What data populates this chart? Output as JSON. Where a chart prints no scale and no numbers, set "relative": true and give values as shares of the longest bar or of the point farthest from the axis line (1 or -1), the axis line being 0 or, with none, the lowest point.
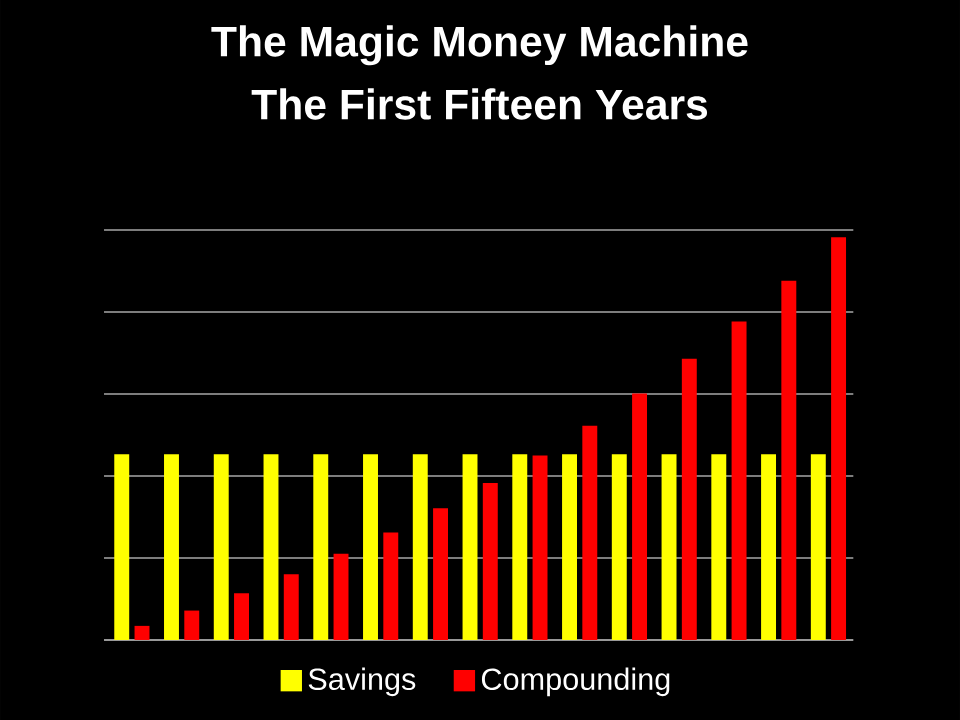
{
  "chart_data": {
    "type": "bar",
    "title": "The Magic Money Machine",
    "subtitle": "The First Fifteen Years",
    "categories": [
      null,
      null,
      null,
      null,
      null,
      null,
      null,
      null,
      null,
      null,
      null,
      null,
      null,
      null,
      null
    ],
    "relative": true,
    "grid": "y",
    "legend": "bottom",
    "series": [
      {
        "name": "Savings",
        "color": "#ffff00",
        "values": [
          0.461,
          0.461,
          0.461,
          0.461,
          0.461,
          0.461,
          0.461,
          0.461,
          0.461,
          0.461,
          0.461,
          0.461,
          0.461,
          0.461,
          0.461
        ]
      },
      {
        "name": "Compounding",
        "color": "#ff0000",
        "values": [
          0.035,
          0.073,
          0.116,
          0.163,
          0.214,
          0.267,
          0.327,
          0.39,
          0.458,
          0.532,
          0.612,
          0.698,
          0.791,
          0.892,
          1
        ]
      }
    ]
  }
}
